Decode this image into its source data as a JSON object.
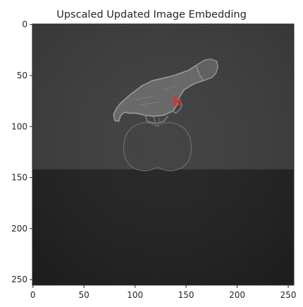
{
  "chart_data": {
    "type": "heatmap",
    "title": "Upscaled Updated Image Embedding",
    "xlabel": "",
    "ylabel": "",
    "xlim": [
      -0.5,
      255.5
    ],
    "ylim": [
      255.5,
      -0.5
    ],
    "x_ticks": [
      0,
      50,
      100,
      150,
      200,
      250
    ],
    "y_ticks": [
      0,
      50,
      100,
      150,
      200,
      250
    ],
    "image": {
      "colormap": "grayscale",
      "upper_region_rows": [
        0,
        142
      ],
      "lower_region_rows": [
        142,
        256
      ],
      "upper_region_color": "#3b3b3b",
      "lower_region_color": "#1e1e1e"
    },
    "marker": {
      "shape": "x",
      "x": 141,
      "y": 76,
      "color": "#e8282c"
    },
    "grid": false,
    "legend": "none"
  }
}
